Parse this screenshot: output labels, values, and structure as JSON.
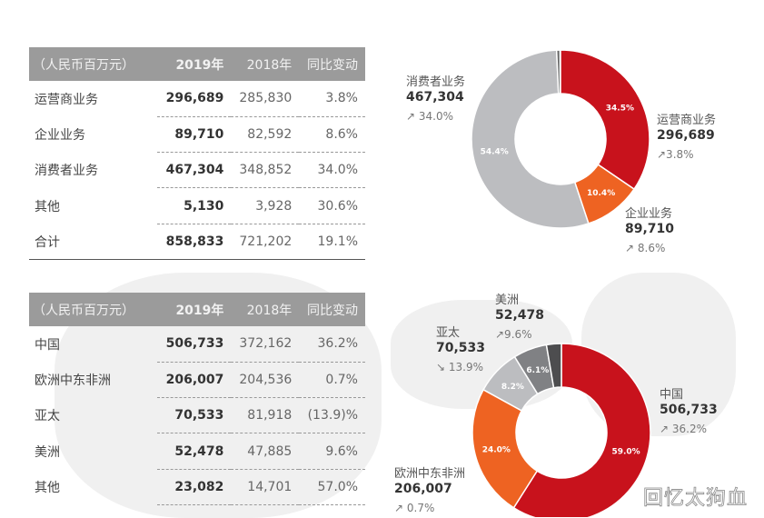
{
  "table1": {
    "headers": [
      "（人民币百万元）",
      "2019年",
      "2018年",
      "同比变动"
    ],
    "rows": [
      [
        "运营商业务",
        "296,689",
        "285,830",
        "3.8%"
      ],
      [
        "企业业务",
        "89,710",
        "82,592",
        "8.6%"
      ],
      [
        "消费者业务",
        "467,304",
        "348,852",
        "34.0%"
      ],
      [
        "其他",
        "5,130",
        "3,928",
        "30.6%"
      ],
      [
        "合计",
        "858,833",
        "721,202",
        "19.1%"
      ]
    ]
  },
  "table2": {
    "headers": [
      "（人民币百万元）",
      "2019年",
      "2018年",
      "同比变动"
    ],
    "rows": [
      [
        "中国",
        "506,733",
        "372,162",
        "36.2%"
      ],
      [
        "欧洲中东非洲",
        "206,007",
        "204,536",
        "0.7%"
      ],
      [
        "亚太",
        "70,533",
        "81,918",
        "(13.9)%"
      ],
      [
        "美洲",
        "52,478",
        "47,885",
        "9.6%"
      ],
      [
        "其他",
        "23,082",
        "14,701",
        "57.0%"
      ]
    ]
  },
  "chart_data": [
    {
      "type": "pie",
      "style": "donut",
      "slices": [
        {
          "name": "运营商业务",
          "pct": 34.5,
          "label": "34.5%",
          "color": "#c8121c"
        },
        {
          "name": "企业业务",
          "pct": 10.4,
          "label": "10.4%",
          "color": "#ee6322"
        },
        {
          "name": "消费者业务",
          "pct": 54.4,
          "label": "54.4%",
          "color": "#bcbdc0"
        },
        {
          "name": "其他",
          "pct": 0.6,
          "label": "",
          "color": "#666666"
        }
      ],
      "callouts": [
        {
          "name": "消费者业务",
          "value": "467,304",
          "change": "↗ 34.0%"
        },
        {
          "name": "运营商业务",
          "value": "296,689",
          "change": "↗3.8%"
        },
        {
          "name": "企业业务",
          "value": "89,710",
          "change": "↗ 8.6%"
        }
      ]
    },
    {
      "type": "pie",
      "style": "donut",
      "slices": [
        {
          "name": "中国",
          "pct": 59.0,
          "label": "59.0%",
          "color": "#c8121c"
        },
        {
          "name": "欧洲中东非洲",
          "pct": 24.0,
          "label": "24.0%",
          "color": "#ee6322"
        },
        {
          "name": "亚太",
          "pct": 8.2,
          "label": "8.2%",
          "color": "#bcbdc0"
        },
        {
          "name": "美洲",
          "pct": 6.1,
          "label": "6.1%",
          "color": "#808184"
        },
        {
          "name": "其他",
          "pct": 2.7,
          "label": "",
          "color": "#4d4d4f"
        }
      ],
      "callouts": [
        {
          "name": "美洲",
          "value": "52,478",
          "change": "↗9.6%"
        },
        {
          "name": "亚太",
          "value": "70,533",
          "change": "↘ 13.9%"
        },
        {
          "name": "中国",
          "value": "506,733",
          "change": "↗ 36.2%"
        },
        {
          "name": "欧洲中东非洲",
          "value": "206,007",
          "change": "↗ 0.7%"
        }
      ]
    }
  ],
  "watermark": "回忆太狗血"
}
